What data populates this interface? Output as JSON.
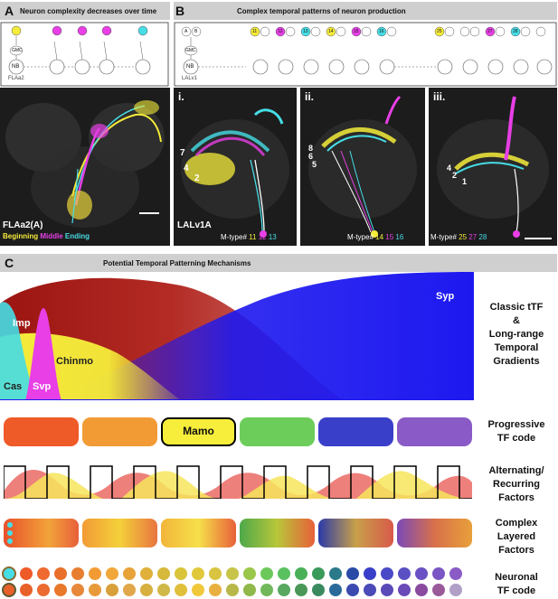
{
  "panelA": {
    "letter": "A",
    "title": "Neuron complexity decreases over time",
    "diagram": {
      "gmc": "GMC",
      "nb": "NB",
      "lineage": "FLAa2"
    },
    "image": {
      "name": "FLAa2(A)",
      "legend": [
        "Beginning",
        "Middle",
        "Ending"
      ]
    }
  },
  "panelB": {
    "letter": "B",
    "title": "Complex temporal patterns of neuron production",
    "diagram": {
      "a": "A",
      "b": "B",
      "gmc": "GMC",
      "nb": "NB",
      "lineage": "LALv1",
      "numbers": [
        "11",
        "12",
        "13",
        "14",
        "15",
        "16",
        "25",
        "27",
        "28"
      ]
    },
    "images": [
      {
        "roman": "i.",
        "lineage": "LALv1A",
        "prefix": "M-type#",
        "mtypes": [
          "11",
          "12",
          "13"
        ],
        "numbers": [
          "7",
          "4",
          "2"
        ]
      },
      {
        "roman": "ii.",
        "prefix": "M-type#",
        "mtypes": [
          "14",
          "15",
          "16"
        ],
        "numbers": [
          "8",
          "6",
          "5"
        ]
      },
      {
        "roman": "iii.",
        "prefix": "M-type#",
        "mtypes": [
          "25",
          "27",
          "28"
        ],
        "numbers": [
          "4",
          "2",
          "1"
        ]
      }
    ]
  },
  "panelC": {
    "letter": "C",
    "title": "Potential Temporal Patterning Mechanisms",
    "gradients": {
      "imp": "Imp",
      "chinmo": "Chinmo",
      "cas": "Cas",
      "svp": "Svp",
      "syp": "Syp"
    },
    "labels": {
      "row1": [
        "Classic tTF",
        "&",
        "Long-range",
        "Temporal",
        "Gradients"
      ],
      "row2": [
        "Progressive",
        "TF code"
      ],
      "row3": [
        "Alternating/",
        "Recurring",
        "Factors"
      ],
      "row4": [
        "Complex",
        "Layered",
        "Factors"
      ],
      "row5": [
        "Neuronal",
        "TF code"
      ]
    },
    "mamo": "Mamo"
  },
  "colors": {
    "yellow": "#f5ec3a",
    "magenta": "#e83fe6",
    "cyan": "#46dde6",
    "syp": "#1d18ef",
    "imp": "#9b1410",
    "seg": [
      "#ee5a28",
      "#f29b35",
      "#f6ee3a",
      "#6ccd5a",
      "#3a3fc9",
      "#8a5bc6"
    ]
  }
}
